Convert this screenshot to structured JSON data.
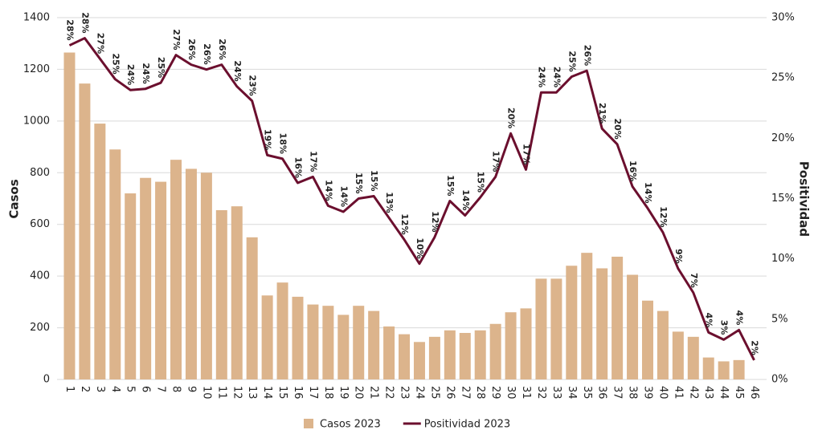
{
  "chart_data": {
    "type": "bar_line",
    "y_label": "Casos",
    "y2_label": "Positividad",
    "categories": [
      "1",
      "2",
      "3",
      "4",
      "5",
      "6",
      "7",
      "8",
      "9",
      "10",
      "11",
      "12",
      "13",
      "14",
      "15",
      "16",
      "17",
      "18",
      "19",
      "20",
      "21",
      "22",
      "23",
      "24",
      "25",
      "26",
      "27",
      "28",
      "29",
      "30",
      "31",
      "32",
      "33",
      "34",
      "35",
      "36",
      "37",
      "38",
      "39",
      "40",
      "41",
      "42",
      "43",
      "44",
      "45",
      "46"
    ],
    "series": [
      {
        "name": "Casos 2023",
        "type": "bar",
        "color": "#dcb48c",
        "values": [
          1265,
          1145,
          990,
          890,
          720,
          780,
          765,
          850,
          815,
          800,
          655,
          670,
          550,
          325,
          375,
          320,
          290,
          285,
          250,
          285,
          265,
          205,
          175,
          145,
          165,
          190,
          180,
          190,
          215,
          260,
          275,
          390,
          390,
          440,
          490,
          430,
          475,
          405,
          305,
          265,
          185,
          165,
          85,
          70,
          75,
          null
        ]
      },
      {
        "name": "Positividad 2023",
        "type": "line",
        "axis": "y2",
        "color": "#6b0f2e",
        "values": [
          27.7,
          28.3,
          26.6,
          24.9,
          24.0,
          24.1,
          24.6,
          26.9,
          26.1,
          25.7,
          26.1,
          24.3,
          23.1,
          18.6,
          18.3,
          16.3,
          16.8,
          14.4,
          13.9,
          15.0,
          15.2,
          13.4,
          11.6,
          9.6,
          11.8,
          14.8,
          13.6,
          15.1,
          16.8,
          20.4,
          17.4,
          23.8,
          23.8,
          25.1,
          25.6,
          20.8,
          19.5,
          16.0,
          14.2,
          12.2,
          9.2,
          7.2,
          3.9,
          3.3,
          4.1,
          1.6
        ],
        "value_labels": [
          "28%",
          "28%",
          "27%",
          "25%",
          "24%",
          "24%",
          "25%",
          "27%",
          "26%",
          "26%",
          "26%",
          "24%",
          "23%",
          "19%",
          "18%",
          "16%",
          "17%",
          "14%",
          "14%",
          "15%",
          "15%",
          "13%",
          "12%",
          "10%",
          "12%",
          "15%",
          "14%",
          "15%",
          "17%",
          "20%",
          "17%",
          "24%",
          "24%",
          "25%",
          "26%",
          "21%",
          "20%",
          "16%",
          "14%",
          "12%",
          "9%",
          "7%",
          "4%",
          "3%",
          "4%",
          "2%"
        ]
      }
    ],
    "ylim": [
      0,
      1400
    ],
    "yticks": [
      0,
      200,
      400,
      600,
      800,
      1000,
      1200,
      1400
    ],
    "y2lim": [
      0,
      30
    ],
    "y2ticks": [
      {
        "value": 0,
        "label": "0%"
      },
      {
        "value": 5,
        "label": "5%"
      },
      {
        "value": 10,
        "label": "10%"
      },
      {
        "value": 15,
        "label": "15%"
      },
      {
        "value": 20,
        "label": "20%"
      },
      {
        "value": 25,
        "label": "25%"
      },
      {
        "value": 30,
        "label": "30%"
      }
    ],
    "grid": true,
    "legend": "bottom"
  }
}
